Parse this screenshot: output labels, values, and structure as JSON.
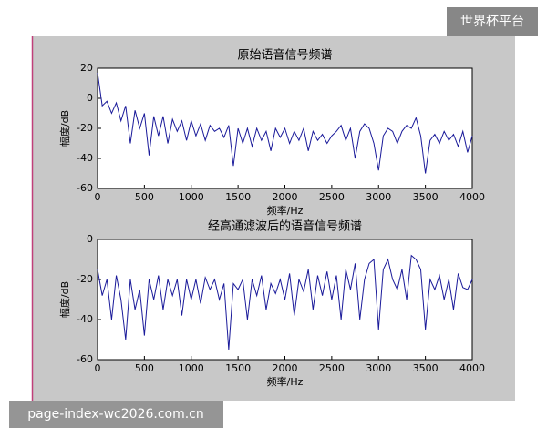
{
  "chart_data": [
    {
      "type": "line",
      "title": "原始语音信号频谱",
      "xlabel": "频率/Hz",
      "ylabel": "幅度/dB",
      "color": "#1a1a9a",
      "xlim": [
        0,
        4000
      ],
      "ylim": [
        -60,
        20
      ],
      "xticks": [
        0,
        500,
        1000,
        1500,
        2000,
        2500,
        3000,
        3500,
        4000
      ],
      "yticks": [
        -60,
        -40,
        -20,
        0,
        20
      ],
      "x": [
        0,
        50,
        100,
        150,
        200,
        250,
        300,
        350,
        400,
        450,
        500,
        550,
        600,
        650,
        700,
        750,
        800,
        850,
        900,
        950,
        1000,
        1050,
        1100,
        1150,
        1200,
        1250,
        1300,
        1350,
        1400,
        1450,
        1500,
        1550,
        1600,
        1650,
        1700,
        1750,
        1800,
        1850,
        1900,
        1950,
        2000,
        2050,
        2100,
        2150,
        2200,
        2250,
        2300,
        2350,
        2400,
        2450,
        2500,
        2550,
        2600,
        2650,
        2700,
        2750,
        2800,
        2850,
        2900,
        2950,
        3000,
        3050,
        3100,
        3150,
        3200,
        3250,
        3300,
        3350,
        3400,
        3450,
        3500,
        3550,
        3600,
        3650,
        3700,
        3750,
        3800,
        3850,
        3900,
        3950,
        4000
      ],
      "values": [
        17,
        -5,
        -2,
        -10,
        -3,
        -15,
        -5,
        -30,
        -8,
        -20,
        -10,
        -38,
        -12,
        -25,
        -12,
        -30,
        -14,
        -22,
        -15,
        -28,
        -15,
        -25,
        -17,
        -28,
        -18,
        -22,
        -20,
        -26,
        -18,
        -45,
        -20,
        -30,
        -20,
        -32,
        -20,
        -28,
        -22,
        -35,
        -20,
        -26,
        -20,
        -30,
        -22,
        -28,
        -20,
        -35,
        -22,
        -28,
        -24,
        -30,
        -25,
        -22,
        -18,
        -28,
        -20,
        -40,
        -22,
        -17,
        -20,
        -30,
        -48,
        -25,
        -20,
        -22,
        -30,
        -22,
        -18,
        -20,
        -13,
        -25,
        -50,
        -28,
        -24,
        -30,
        -22,
        -28,
        -24,
        -32,
        -22,
        -36,
        -25
      ]
    },
    {
      "type": "line",
      "title": "经高通滤波后的语音信号频谱",
      "xlabel": "频率/Hz",
      "ylabel": "幅度/dB",
      "color": "#1a1a9a",
      "xlim": [
        0,
        4000
      ],
      "ylim": [
        -60,
        0
      ],
      "xticks": [
        0,
        500,
        1000,
        1500,
        2000,
        2500,
        3000,
        3500,
        4000
      ],
      "yticks": [
        -60,
        -40,
        -20,
        0
      ],
      "x": [
        0,
        50,
        100,
        150,
        200,
        250,
        300,
        350,
        400,
        450,
        500,
        550,
        600,
        650,
        700,
        750,
        800,
        850,
        900,
        950,
        1000,
        1050,
        1100,
        1150,
        1200,
        1250,
        1300,
        1350,
        1400,
        1450,
        1500,
        1550,
        1600,
        1650,
        1700,
        1750,
        1800,
        1850,
        1900,
        1950,
        2000,
        2050,
        2100,
        2150,
        2200,
        2250,
        2300,
        2350,
        2400,
        2450,
        2500,
        2550,
        2600,
        2650,
        2700,
        2750,
        2800,
        2850,
        2900,
        2950,
        3000,
        3050,
        3100,
        3150,
        3200,
        3250,
        3300,
        3350,
        3400,
        3450,
        3500,
        3550,
        3600,
        3650,
        3700,
        3750,
        3800,
        3850,
        3900,
        3950,
        4000
      ],
      "values": [
        -15,
        -28,
        -20,
        -40,
        -18,
        -30,
        -50,
        -20,
        -35,
        -25,
        -48,
        -20,
        -30,
        -18,
        -35,
        -20,
        -28,
        -20,
        -38,
        -20,
        -30,
        -20,
        -32,
        -19,
        -25,
        -20,
        -30,
        -22,
        -55,
        -22,
        -25,
        -20,
        -40,
        -20,
        -28,
        -18,
        -35,
        -22,
        -27,
        -20,
        -30,
        -17,
        -38,
        -20,
        -26,
        -15,
        -35,
        -18,
        -28,
        -16,
        -30,
        -18,
        -40,
        -15,
        -25,
        -12,
        -40,
        -20,
        -12,
        -10,
        -45,
        -15,
        -10,
        -20,
        -25,
        -15,
        -30,
        -8,
        -10,
        -15,
        -45,
        -20,
        -25,
        -18,
        -30,
        -20,
        -35,
        -17,
        -24,
        -25,
        -20
      ]
    }
  ],
  "watermark": {
    "top_right": "世界杯平台",
    "bottom_left": "page-index-wc2026.com.cn"
  }
}
